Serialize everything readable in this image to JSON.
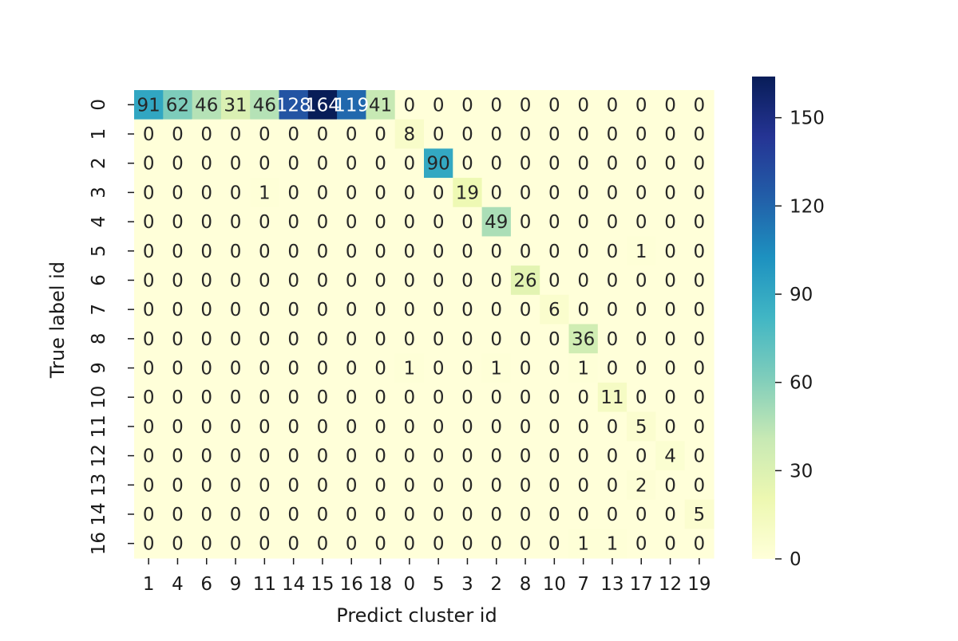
{
  "chart_data": {
    "type": "heatmap",
    "title": "",
    "xlabel": "Predict cluster id",
    "ylabel": "True label id",
    "x_ticks": [
      "1",
      "4",
      "6",
      "9",
      "11",
      "14",
      "15",
      "16",
      "18",
      "0",
      "5",
      "3",
      "2",
      "8",
      "10",
      "7",
      "13",
      "17",
      "12",
      "19"
    ],
    "y_ticks": [
      "0",
      "1",
      "2",
      "3",
      "4",
      "5",
      "6",
      "7",
      "8",
      "9",
      "10",
      "11",
      "12",
      "13",
      "14",
      "16"
    ],
    "values": [
      [
        91,
        62,
        46,
        31,
        46,
        128,
        164,
        119,
        41,
        0,
        0,
        0,
        0,
        0,
        0,
        0,
        0,
        0,
        0,
        0
      ],
      [
        0,
        0,
        0,
        0,
        0,
        0,
        0,
        0,
        0,
        8,
        0,
        0,
        0,
        0,
        0,
        0,
        0,
        0,
        0,
        0
      ],
      [
        0,
        0,
        0,
        0,
        0,
        0,
        0,
        0,
        0,
        0,
        90,
        0,
        0,
        0,
        0,
        0,
        0,
        0,
        0,
        0
      ],
      [
        0,
        0,
        0,
        0,
        1,
        0,
        0,
        0,
        0,
        0,
        0,
        19,
        0,
        0,
        0,
        0,
        0,
        0,
        0,
        0
      ],
      [
        0,
        0,
        0,
        0,
        0,
        0,
        0,
        0,
        0,
        0,
        0,
        0,
        49,
        0,
        0,
        0,
        0,
        0,
        0,
        0
      ],
      [
        0,
        0,
        0,
        0,
        0,
        0,
        0,
        0,
        0,
        0,
        0,
        0,
        0,
        0,
        0,
        0,
        0,
        1,
        0,
        0
      ],
      [
        0,
        0,
        0,
        0,
        0,
        0,
        0,
        0,
        0,
        0,
        0,
        0,
        0,
        26,
        0,
        0,
        0,
        0,
        0,
        0
      ],
      [
        0,
        0,
        0,
        0,
        0,
        0,
        0,
        0,
        0,
        0,
        0,
        0,
        0,
        0,
        6,
        0,
        0,
        0,
        0,
        0
      ],
      [
        0,
        0,
        0,
        0,
        0,
        0,
        0,
        0,
        0,
        0,
        0,
        0,
        0,
        0,
        0,
        36,
        0,
        0,
        0,
        0
      ],
      [
        0,
        0,
        0,
        0,
        0,
        0,
        0,
        0,
        0,
        1,
        0,
        0,
        1,
        0,
        0,
        1,
        0,
        0,
        0,
        0
      ],
      [
        0,
        0,
        0,
        0,
        0,
        0,
        0,
        0,
        0,
        0,
        0,
        0,
        0,
        0,
        0,
        0,
        11,
        0,
        0,
        0
      ],
      [
        0,
        0,
        0,
        0,
        0,
        0,
        0,
        0,
        0,
        0,
        0,
        0,
        0,
        0,
        0,
        0,
        0,
        5,
        0,
        0
      ],
      [
        0,
        0,
        0,
        0,
        0,
        0,
        0,
        0,
        0,
        0,
        0,
        0,
        0,
        0,
        0,
        0,
        0,
        0,
        4,
        0
      ],
      [
        0,
        0,
        0,
        0,
        0,
        0,
        0,
        0,
        0,
        0,
        0,
        0,
        0,
        0,
        0,
        0,
        0,
        2,
        0,
        0
      ],
      [
        0,
        0,
        0,
        0,
        0,
        0,
        0,
        0,
        0,
        0,
        0,
        0,
        0,
        0,
        0,
        0,
        0,
        0,
        0,
        5
      ],
      [
        0,
        0,
        0,
        0,
        0,
        0,
        0,
        0,
        0,
        0,
        0,
        0,
        0,
        0,
        0,
        1,
        1,
        0,
        0,
        0
      ]
    ],
    "colormap": "YlGnBu",
    "color_range": [
      0,
      164
    ],
    "colorbar_ticks": [
      0,
      30,
      60,
      90,
      120,
      150
    ],
    "grid": false
  }
}
